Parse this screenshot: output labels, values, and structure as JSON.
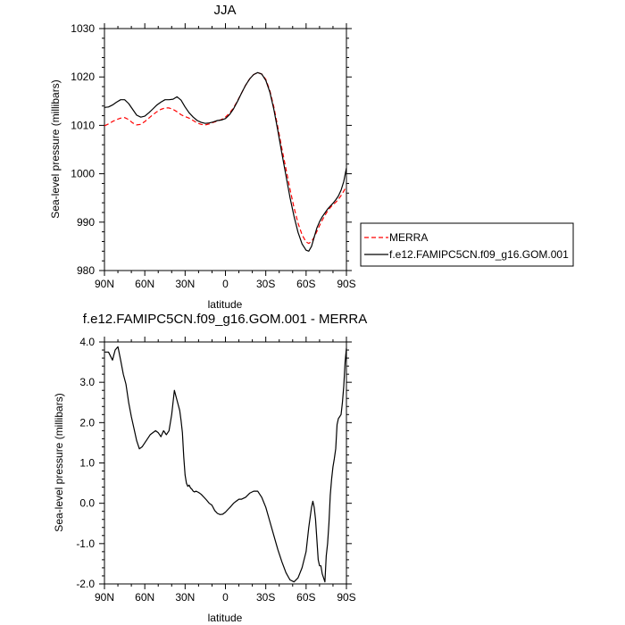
{
  "chart_data": [
    {
      "type": "line",
      "title": "JJA",
      "xlabel": "latitude",
      "ylabel": "Sea-level pressure (millibars)",
      "xlim": [
        90,
        -90
      ],
      "ylim": [
        980,
        1030
      ],
      "x_ticks": [
        90,
        60,
        30,
        0,
        -30,
        -60,
        -90
      ],
      "x_tick_labels": [
        "90N",
        "60N",
        "30N",
        "0",
        "30S",
        "60S",
        "90S"
      ],
      "y_ticks": [
        980,
        990,
        1000,
        1010,
        1020,
        1030
      ],
      "y_tick_labels": [
        "980",
        "990",
        "1000",
        "1010",
        "1020",
        "1030"
      ],
      "grid": false,
      "legend": "outside-right",
      "series": [
        {
          "name": "MERRA",
          "color": "#ff0000",
          "dash": "dashed",
          "x": [
            90,
            87,
            84,
            81,
            78,
            75,
            72,
            69,
            66,
            63,
            60,
            57,
            54,
            51,
            48,
            45,
            42,
            39,
            36,
            33,
            30,
            27,
            24,
            21,
            18,
            15,
            12,
            9,
            6,
            3,
            0,
            -3,
            -6,
            -9,
            -12,
            -15,
            -18,
            -21,
            -24,
            -27,
            -30,
            -33,
            -36,
            -39,
            -42,
            -45,
            -48,
            -51,
            -54,
            -57,
            -60,
            -62,
            -64,
            -66,
            -68,
            -70,
            -72,
            -74,
            -76,
            -78,
            -80,
            -82,
            -84,
            -86,
            -88,
            -90
          ],
          "y": [
            1009.9,
            1010.3,
            1010.8,
            1011.2,
            1011.5,
            1011.6,
            1011.2,
            1010.5,
            1010.1,
            1010.2,
            1010.8,
            1011.5,
            1012.2,
            1012.8,
            1013.3,
            1013.6,
            1013.6,
            1013.3,
            1012.8,
            1012.2,
            1011.8,
            1011.5,
            1011.0,
            1010.5,
            1010.2,
            1010.1,
            1010.3,
            1010.6,
            1010.9,
            1011.2,
            1011.7,
            1012.5,
            1013.6,
            1015.1,
            1016.7,
            1018.3,
            1019.6,
            1020.5,
            1020.9,
            1020.6,
            1019.5,
            1017.2,
            1013.8,
            1009.6,
            1005.2,
            1001.0,
            996.8,
            993.0,
            989.8,
            987.4,
            985.9,
            985.6,
            986.0,
            986.9,
            988.1,
            989.3,
            990.4,
            991.4,
            992.3,
            993.0,
            993.6,
            994.1,
            994.7,
            995.5,
            996.4,
            997.4
          ]
        },
        {
          "name": "f.e12.FAMIPC5CN.f09_g16.GOM.001",
          "color": "#000000",
          "dash": "solid",
          "x": [
            90,
            87,
            84,
            81,
            78,
            75,
            72,
            69,
            66,
            63,
            60,
            57,
            54,
            51,
            48,
            45,
            42,
            39,
            36,
            33,
            30,
            27,
            24,
            21,
            18,
            15,
            12,
            9,
            6,
            3,
            0,
            -3,
            -6,
            -9,
            -12,
            -15,
            -18,
            -21,
            -24,
            -27,
            -30,
            -33,
            -36,
            -39,
            -42,
            -45,
            -48,
            -51,
            -54,
            -57,
            -60,
            -62,
            -64,
            -66,
            -68,
            -70,
            -72,
            -74,
            -76,
            -78,
            -80,
            -82,
            -84,
            -86,
            -88,
            -90
          ],
          "y": [
            1013.7,
            1013.8,
            1014.2,
            1014.8,
            1015.3,
            1015.3,
            1014.5,
            1013.3,
            1012.1,
            1011.7,
            1011.9,
            1012.6,
            1013.4,
            1014.2,
            1014.8,
            1015.3,
            1015.3,
            1015.4,
            1015.9,
            1015.2,
            1013.8,
            1012.6,
            1011.7,
            1011.0,
            1010.6,
            1010.4,
            1010.5,
            1010.7,
            1011.0,
            1011.1,
            1011.4,
            1012.2,
            1013.4,
            1015.0,
            1016.7,
            1018.3,
            1019.6,
            1020.5,
            1020.9,
            1020.6,
            1019.3,
            1016.9,
            1013.3,
            1008.9,
            1004.2,
            999.6,
            995.1,
            991.2,
            987.9,
            985.5,
            984.2,
            984.0,
            985.0,
            986.9,
            988.8,
            990.1,
            991.1,
            991.9,
            992.7,
            993.3,
            993.9,
            994.6,
            995.4,
            996.6,
            998.4,
            1001.2
          ]
        }
      ]
    },
    {
      "type": "line",
      "title": "f.e12.FAMIPC5CN.f09_g16.GOM.001 - MERRA",
      "xlabel": "latitude",
      "ylabel": "Sea-level pressure (millibars)",
      "xlim": [
        90,
        -90
      ],
      "ylim": [
        -2.0,
        4.0
      ],
      "x_ticks": [
        90,
        60,
        30,
        0,
        -30,
        -60,
        -90
      ],
      "x_tick_labels": [
        "90N",
        "60N",
        "30N",
        "0",
        "30S",
        "60S",
        "90S"
      ],
      "y_ticks": [
        -2.0,
        -1.0,
        0.0,
        1.0,
        2.0,
        3.0,
        4.0
      ],
      "y_tick_labels": [
        "-2.0",
        "-1.0",
        "0.0",
        "1.0",
        "2.0",
        "3.0",
        "4.0"
      ],
      "grid": false,
      "series": [
        {
          "color": "#000000",
          "dash": "solid",
          "x": [
            90,
            87,
            84,
            82,
            80,
            78,
            76,
            74,
            72,
            70,
            68,
            66,
            64,
            62,
            60,
            58,
            56,
            54,
            52,
            50,
            48,
            46,
            44,
            42,
            40,
            38,
            36,
            34,
            33,
            32,
            31,
            30,
            29,
            28,
            27,
            26,
            25,
            24,
            23,
            22,
            20,
            18,
            16,
            14,
            12,
            10,
            8,
            6,
            4,
            2,
            0,
            -2,
            -4,
            -6,
            -8,
            -10,
            -12,
            -15,
            -18,
            -21,
            -24,
            -27,
            -30,
            -33,
            -36,
            -39,
            -42,
            -45,
            -48,
            -51,
            -54,
            -57,
            -60,
            -62,
            -64,
            -65,
            -66,
            -67,
            -68,
            -69,
            -70,
            -71,
            -72,
            -73,
            -74,
            -75,
            -76,
            -77,
            -78,
            -79,
            -80,
            -81,
            -82,
            -83,
            -84,
            -85,
            -86,
            -87,
            -88,
            -89,
            -90
          ],
          "y": [
            3.75,
            3.75,
            3.55,
            3.8,
            3.88,
            3.55,
            3.2,
            2.95,
            2.5,
            2.15,
            1.85,
            1.55,
            1.35,
            1.4,
            1.5,
            1.6,
            1.7,
            1.75,
            1.8,
            1.75,
            1.65,
            1.8,
            1.7,
            1.8,
            2.2,
            2.8,
            2.55,
            2.3,
            2.05,
            1.75,
            1.15,
            0.7,
            0.5,
            0.42,
            0.45,
            0.38,
            0.35,
            0.3,
            0.28,
            0.3,
            0.27,
            0.22,
            0.15,
            0.08,
            0.0,
            -0.05,
            -0.18,
            -0.25,
            -0.28,
            -0.27,
            -0.22,
            -0.15,
            -0.08,
            0.0,
            0.05,
            0.1,
            0.1,
            0.15,
            0.25,
            0.3,
            0.3,
            0.15,
            -0.1,
            -0.45,
            -0.8,
            -1.15,
            -1.45,
            -1.72,
            -1.9,
            -1.95,
            -1.85,
            -1.6,
            -1.2,
            -0.6,
            -0.1,
            0.05,
            -0.1,
            -0.4,
            -0.9,
            -1.4,
            -1.55,
            -1.55,
            -1.75,
            -1.85,
            -1.95,
            -1.3,
            -1.0,
            -0.5,
            0.2,
            0.6,
            0.9,
            1.1,
            1.35,
            1.95,
            2.1,
            2.15,
            2.2,
            2.5,
            2.9,
            3.5,
            3.85
          ]
        }
      ]
    }
  ]
}
